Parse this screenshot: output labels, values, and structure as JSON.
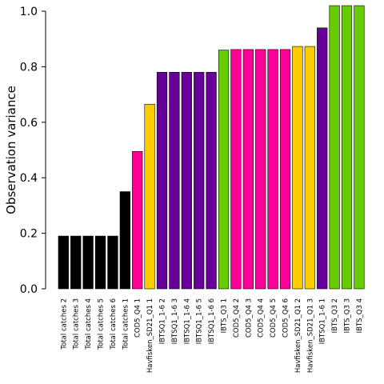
{
  "chart_data": {
    "type": "bar",
    "title": "",
    "xlabel": "",
    "ylabel": "Observation variance",
    "ylim": [
      0.0,
      1.0
    ],
    "yticks": [
      "0.0",
      "0.2",
      "0.4",
      "0.6",
      "0.8",
      "1.0"
    ],
    "grid": false,
    "categories": [
      "Total catches 2",
      "Total catches 3",
      "Total catches 4",
      "Total catches 5",
      "Total catches 6",
      "Total catches 1",
      "COD5_Q4 1",
      "Havfisken_SD21_Q1 1",
      "IBTSQ1_1-6 2",
      "IBTSQ1_1-6 3",
      "IBTSQ1_1-6 4",
      "IBTSQ1_1-6 5",
      "IBTSQ1_1-6 6",
      "IBTS_Q3 1",
      "COD5_Q4 2",
      "COD5_Q4 3",
      "COD5_Q4 4",
      "COD5_Q4 5",
      "COD5_Q4 6",
      "Havfisken_SD21_Q1 2",
      "Havfisken_SD21_Q1 3",
      "IBTSQ1_1-6 1",
      "IBTS_Q3 2",
      "IBTS_Q3 3",
      "IBTS_Q3 4"
    ],
    "values": [
      0.19,
      0.19,
      0.19,
      0.19,
      0.19,
      0.35,
      0.495,
      0.665,
      0.78,
      0.78,
      0.78,
      0.78,
      0.78,
      0.86,
      0.862,
      0.862,
      0.862,
      0.862,
      0.862,
      0.873,
      0.873,
      0.94,
      1.02,
      1.02,
      1.02
    ],
    "colors": [
      "#000000",
      "#000000",
      "#000000",
      "#000000",
      "#000000",
      "#000000",
      "#ff0099",
      "#ffcc00",
      "#660099",
      "#660099",
      "#660099",
      "#660099",
      "#660099",
      "#66cc00",
      "#ff0099",
      "#ff0099",
      "#ff0099",
      "#ff0099",
      "#ff0099",
      "#ffcc00",
      "#ffcc00",
      "#660099",
      "#66cc00",
      "#66cc00",
      "#66cc00"
    ]
  }
}
